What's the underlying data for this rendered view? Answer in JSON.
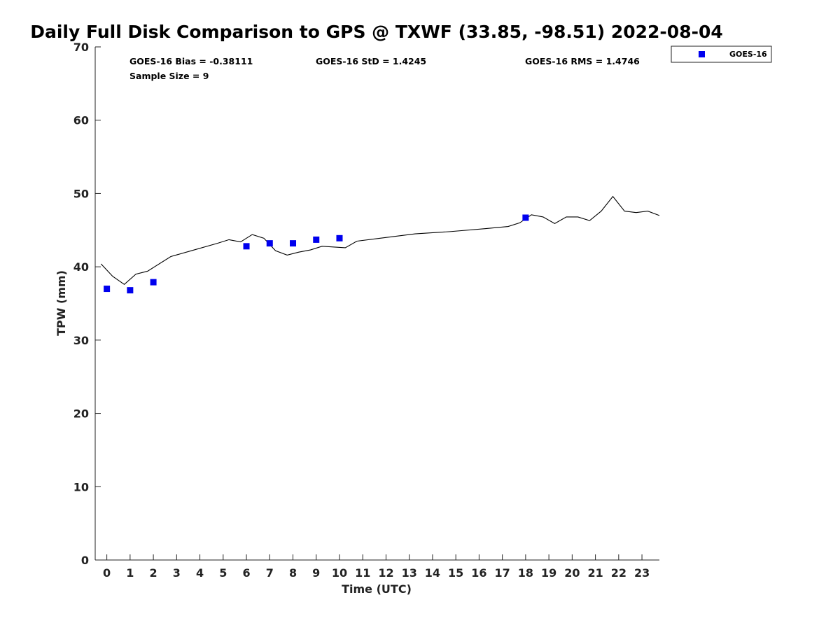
{
  "chart_data": {
    "type": "scatter",
    "title": "Daily Full Disk Comparison to GPS @ TXWF (33.85, -98.51) 2022-08-04",
    "xlabel": "Time (UTC)",
    "ylabel": "TPW (mm)",
    "xlim": [
      -0.5,
      23.75
    ],
    "ylim": [
      0,
      70
    ],
    "xticks": [
      "0",
      "1",
      "2",
      "3",
      "4",
      "5",
      "6",
      "7",
      "8",
      "9",
      "10",
      "11",
      "12",
      "13",
      "14",
      "15",
      "16",
      "17",
      "18",
      "19",
      "20",
      "21",
      "22",
      "23"
    ],
    "yticks": [
      "0",
      "10",
      "20",
      "30",
      "40",
      "50",
      "60",
      "70"
    ],
    "grid": false,
    "legend_position": "top-right, outside plot",
    "stats": {
      "bias": "GOES-16 Bias = -0.38111",
      "std": "GOES-16 StD = 1.4245",
      "rms": "GOES-16 RMS = 1.4746",
      "sample_size": "Sample Size = 9"
    },
    "series": [
      {
        "name": "GOES-16",
        "kind": "scatter",
        "marker": "square",
        "color": "#0000ee",
        "x": [
          0,
          1,
          2,
          6,
          7,
          8,
          9,
          10,
          18
        ],
        "y": [
          37.0,
          36.8,
          37.9,
          42.8,
          43.2,
          43.2,
          43.7,
          43.9,
          46.7
        ]
      },
      {
        "kind": "line",
        "color": "#000000",
        "x": [
          -0.25,
          0.25,
          0.75,
          1.25,
          1.75,
          2.75,
          3.75,
          4.75,
          5.25,
          5.75,
          6.25,
          6.75,
          7.25,
          7.75,
          8.25,
          8.75,
          9.25,
          10.25,
          10.75,
          11.75,
          13.25,
          14.75,
          16.25,
          17.25,
          17.75,
          18.25,
          18.75,
          19.25,
          19.75,
          20.25,
          20.75,
          21.25,
          21.75,
          22.25,
          22.75,
          23.25,
          23.75
        ],
        "y": [
          40.4,
          38.7,
          37.6,
          39.0,
          39.4,
          41.4,
          42.3,
          43.2,
          43.7,
          43.4,
          44.4,
          43.9,
          42.2,
          41.6,
          42.0,
          42.3,
          42.8,
          42.6,
          43.5,
          43.9,
          44.5,
          44.8,
          45.2,
          45.5,
          46.0,
          47.1,
          46.8,
          45.9,
          46.8,
          46.8,
          46.3,
          47.6,
          49.6,
          47.6,
          47.4,
          47.6,
          47.0
        ]
      }
    ]
  }
}
